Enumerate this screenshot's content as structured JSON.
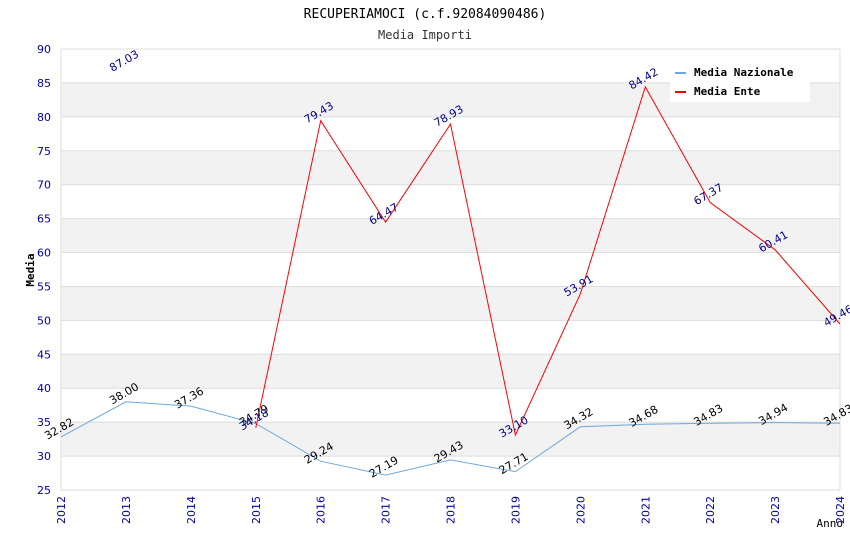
{
  "chart_data": {
    "type": "line",
    "title": "RECUPERIAMOCI   (c.f.92084090486)",
    "subtitle": "Media Importi",
    "ylabel": "Media",
    "xlabel": "Anno",
    "ylim": [
      25,
      90
    ],
    "yticks": [
      "25",
      "30",
      "35",
      "40",
      "45",
      "50",
      "55",
      "60",
      "65",
      "70",
      "75",
      "80",
      "85",
      "90"
    ],
    "categories": [
      "2012",
      "2013",
      "2014",
      "2015",
      "2016",
      "2017",
      "2018",
      "2019",
      "2020",
      "2021",
      "2022",
      "2023",
      "2024"
    ],
    "grid": true,
    "legend_position": "top-right",
    "series": [
      {
        "name": "Media Nazionale",
        "color": "#6fa8dc",
        "label_color": "#000000",
        "values": [
          32.82,
          38.0,
          37.36,
          34.79,
          29.24,
          27.19,
          29.43,
          27.71,
          34.32,
          34.68,
          34.83,
          34.94,
          34.83
        ],
        "labels": [
          "32.82",
          "38.00",
          "37.36",
          "34.79",
          "29.24",
          "27.19",
          "29.43",
          "27.71",
          "34.32",
          "34.68",
          "34.83",
          "34.94",
          "34.83"
        ]
      },
      {
        "name": "Media Ente",
        "color": "#ff0000",
        "label_color": "#00008b",
        "values": [
          null,
          87.03,
          null,
          34.18,
          79.43,
          64.47,
          78.93,
          33.1,
          53.91,
          84.42,
          67.37,
          60.41,
          49.46
        ],
        "labels": [
          null,
          "87.03",
          null,
          "34.18",
          "79.43",
          "64.47",
          "78.93",
          "33.10",
          "53.91",
          "84.42",
          "67.37",
          "60.41",
          "49.46"
        ]
      }
    ]
  }
}
